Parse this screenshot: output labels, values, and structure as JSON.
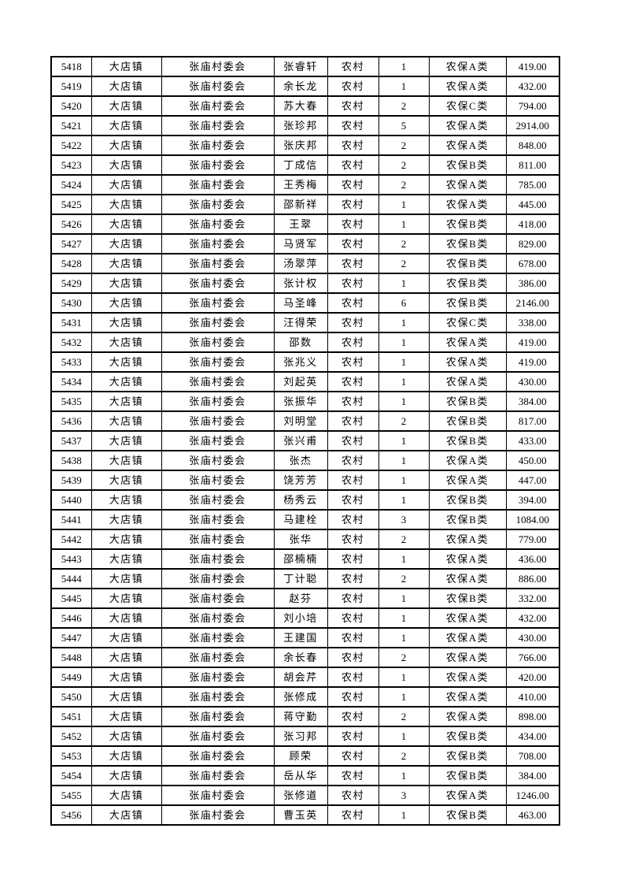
{
  "page": {
    "background_color": "#ffffff",
    "text_color": "#000000",
    "border_color": "#000000"
  },
  "table": {
    "rows": [
      [
        "5418",
        "大店镇",
        "张庙村委会",
        "张睿轩",
        "农村",
        "1",
        "农保A类",
        "419.00"
      ],
      [
        "5419",
        "大店镇",
        "张庙村委会",
        "余长龙",
        "农村",
        "1",
        "农保A类",
        "432.00"
      ],
      [
        "5420",
        "大店镇",
        "张庙村委会",
        "苏大春",
        "农村",
        "2",
        "农保C类",
        "794.00"
      ],
      [
        "5421",
        "大店镇",
        "张庙村委会",
        "张珍邦",
        "农村",
        "5",
        "农保A类",
        "2914.00"
      ],
      [
        "5422",
        "大店镇",
        "张庙村委会",
        "张庆邦",
        "农村",
        "2",
        "农保A类",
        "848.00"
      ],
      [
        "5423",
        "大店镇",
        "张庙村委会",
        "丁成信",
        "农村",
        "2",
        "农保B类",
        "811.00"
      ],
      [
        "5424",
        "大店镇",
        "张庙村委会",
        "王秀梅",
        "农村",
        "2",
        "农保A类",
        "785.00"
      ],
      [
        "5425",
        "大店镇",
        "张庙村委会",
        "邵新祥",
        "农村",
        "1",
        "农保A类",
        "445.00"
      ],
      [
        "5426",
        "大店镇",
        "张庙村委会",
        "王翠",
        "农村",
        "1",
        "农保B类",
        "418.00"
      ],
      [
        "5427",
        "大店镇",
        "张庙村委会",
        "马贤军",
        "农村",
        "2",
        "农保B类",
        "829.00"
      ],
      [
        "5428",
        "大店镇",
        "张庙村委会",
        "汤翠萍",
        "农村",
        "2",
        "农保B类",
        "678.00"
      ],
      [
        "5429",
        "大店镇",
        "张庙村委会",
        "张计权",
        "农村",
        "1",
        "农保B类",
        "386.00"
      ],
      [
        "5430",
        "大店镇",
        "张庙村委会",
        "马圣峰",
        "农村",
        "6",
        "农保B类",
        "2146.00"
      ],
      [
        "5431",
        "大店镇",
        "张庙村委会",
        "汪得荣",
        "农村",
        "1",
        "农保C类",
        "338.00"
      ],
      [
        "5432",
        "大店镇",
        "张庙村委会",
        "邵数",
        "农村",
        "1",
        "农保A类",
        "419.00"
      ],
      [
        "5433",
        "大店镇",
        "张庙村委会",
        "张兆义",
        "农村",
        "1",
        "农保A类",
        "419.00"
      ],
      [
        "5434",
        "大店镇",
        "张庙村委会",
        "刘起英",
        "农村",
        "1",
        "农保A类",
        "430.00"
      ],
      [
        "5435",
        "大店镇",
        "张庙村委会",
        "张振华",
        "农村",
        "1",
        "农保B类",
        "384.00"
      ],
      [
        "5436",
        "大店镇",
        "张庙村委会",
        "刘明堂",
        "农村",
        "2",
        "农保B类",
        "817.00"
      ],
      [
        "5437",
        "大店镇",
        "张庙村委会",
        "张兴甫",
        "农村",
        "1",
        "农保B类",
        "433.00"
      ],
      [
        "5438",
        "大店镇",
        "张庙村委会",
        "张杰",
        "农村",
        "1",
        "农保A类",
        "450.00"
      ],
      [
        "5439",
        "大店镇",
        "张庙村委会",
        "饶芳芳",
        "农村",
        "1",
        "农保A类",
        "447.00"
      ],
      [
        "5440",
        "大店镇",
        "张庙村委会",
        "杨秀云",
        "农村",
        "1",
        "农保B类",
        "394.00"
      ],
      [
        "5441",
        "大店镇",
        "张庙村委会",
        "马建栓",
        "农村",
        "3",
        "农保B类",
        "1084.00"
      ],
      [
        "5442",
        "大店镇",
        "张庙村委会",
        "张华",
        "农村",
        "2",
        "农保A类",
        "779.00"
      ],
      [
        "5443",
        "大店镇",
        "张庙村委会",
        "邵楠楠",
        "农村",
        "1",
        "农保A类",
        "436.00"
      ],
      [
        "5444",
        "大店镇",
        "张庙村委会",
        "丁计聪",
        "农村",
        "2",
        "农保A类",
        "886.00"
      ],
      [
        "5445",
        "大店镇",
        "张庙村委会",
        "赵芬",
        "农村",
        "1",
        "农保B类",
        "332.00"
      ],
      [
        "5446",
        "大店镇",
        "张庙村委会",
        "刘小培",
        "农村",
        "1",
        "农保A类",
        "432.00"
      ],
      [
        "5447",
        "大店镇",
        "张庙村委会",
        "王建国",
        "农村",
        "1",
        "农保A类",
        "430.00"
      ],
      [
        "5448",
        "大店镇",
        "张庙村委会",
        "余长春",
        "农村",
        "2",
        "农保A类",
        "766.00"
      ],
      [
        "5449",
        "大店镇",
        "张庙村委会",
        "胡会芹",
        "农村",
        "1",
        "农保A类",
        "420.00"
      ],
      [
        "5450",
        "大店镇",
        "张庙村委会",
        "张修成",
        "农村",
        "1",
        "农保A类",
        "410.00"
      ],
      [
        "5451",
        "大店镇",
        "张庙村委会",
        "蒋守勤",
        "农村",
        "2",
        "农保A类",
        "898.00"
      ],
      [
        "5452",
        "大店镇",
        "张庙村委会",
        "张习邦",
        "农村",
        "1",
        "农保B类",
        "434.00"
      ],
      [
        "5453",
        "大店镇",
        "张庙村委会",
        "顾荣",
        "农村",
        "2",
        "农保B类",
        "708.00"
      ],
      [
        "5454",
        "大店镇",
        "张庙村委会",
        "岳从华",
        "农村",
        "1",
        "农保B类",
        "384.00"
      ],
      [
        "5455",
        "大店镇",
        "张庙村委会",
        "张修道",
        "农村",
        "3",
        "农保A类",
        "1246.00"
      ],
      [
        "5456",
        "大店镇",
        "张庙村委会",
        "曹玉英",
        "农村",
        "1",
        "农保B类",
        "463.00"
      ]
    ]
  }
}
